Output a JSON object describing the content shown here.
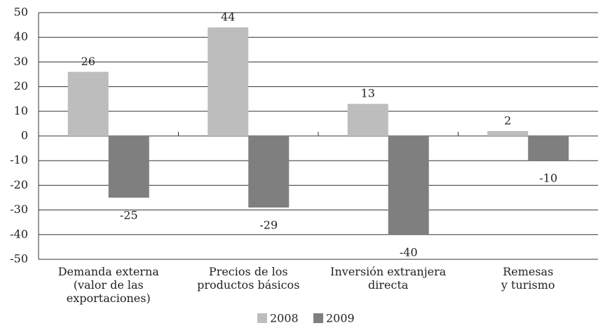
{
  "chart_data": {
    "type": "bar",
    "categories": [
      "Demanda externa\n(valor de las\nexportaciones)",
      "Precios de los\nproductos básicos",
      "Inversión extranjera\ndirecta",
      "Remesas\ny turismo"
    ],
    "series": [
      {
        "name": "2008",
        "color": "#bdbdbd",
        "values": [
          26,
          44,
          13,
          2
        ]
      },
      {
        "name": "2009",
        "color": "#7f7f7f",
        "values": [
          -25,
          -29,
          -40,
          -10
        ]
      }
    ],
    "ylim": [
      -50,
      50
    ],
    "yticks": [
      -50,
      -40,
      -30,
      -20,
      -10,
      0,
      10,
      20,
      30,
      40,
      50
    ],
    "grid": true
  }
}
